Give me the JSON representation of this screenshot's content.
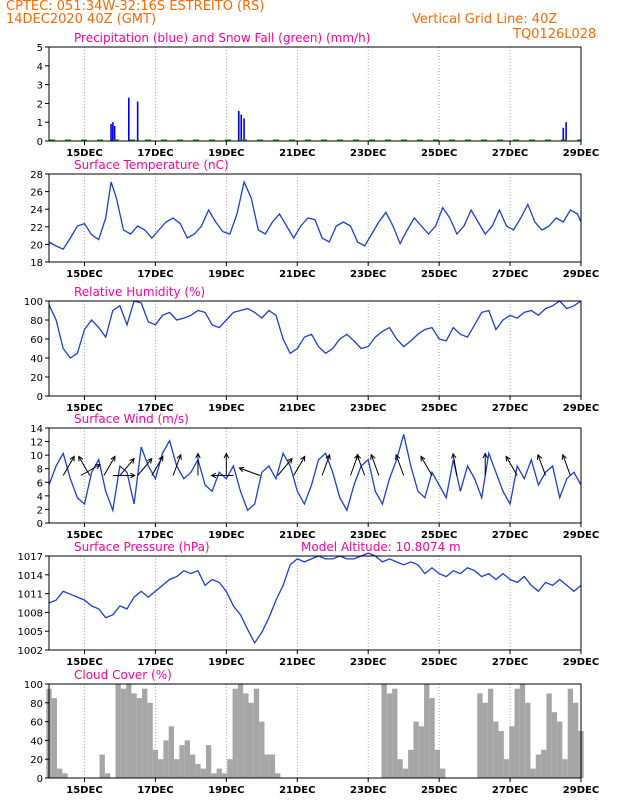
{
  "header": {
    "line1": "CPTEC:   051:34W-32:16S   ESTREITO (RS)",
    "line2": "14DEC2020 40Z (GMT)",
    "grid_note": "Vertical Grid Line: 40Z",
    "code": "TQ0126L028"
  },
  "colors": {
    "header": "#ff6600",
    "title": "#ff0099",
    "line": "#1a3fd8",
    "precip": "#0000ee",
    "snow": "#00aa00",
    "cloud": "#a6a6a6"
  },
  "x_ticks": [
    "15DEC",
    "17DEC",
    "19DEC",
    "21DEC",
    "23DEC",
    "25DEC",
    "27DEC",
    "29DEC"
  ],
  "chart_data": [
    {
      "id": "precip",
      "type": "bar",
      "title": "Precipitation (blue) and Snow Fall (green) (mm/h)",
      "ylim": [
        0,
        5
      ],
      "yticks": [
        "0",
        "1",
        "2",
        "3",
        "4",
        "5"
      ],
      "x_range": [
        14.1,
        29.1
      ],
      "bars": [
        {
          "x": 15.85,
          "v": 0.9
        },
        {
          "x": 15.9,
          "v": 1.0
        },
        {
          "x": 15.95,
          "v": 0.8
        },
        {
          "x": 16.35,
          "v": 2.3
        },
        {
          "x": 16.6,
          "v": 2.1
        },
        {
          "x": 19.45,
          "v": 1.6
        },
        {
          "x": 19.52,
          "v": 1.4
        },
        {
          "x": 19.6,
          "v": 1.2
        },
        {
          "x": 28.6,
          "v": 0.7
        },
        {
          "x": 28.68,
          "v": 1.0
        }
      ]
    },
    {
      "id": "temp",
      "type": "line",
      "title": "Surface Temperature (nC)",
      "ylim": [
        17,
        28
      ],
      "yticks": [
        "18",
        "20",
        "22",
        "24",
        "26",
        "28"
      ],
      "x_range": [
        14.1,
        29.1
      ],
      "x": [
        14.1,
        14.3,
        14.5,
        14.7,
        14.9,
        15.1,
        15.3,
        15.5,
        15.7,
        15.85,
        16.0,
        16.2,
        16.4,
        16.6,
        16.8,
        17.0,
        17.2,
        17.4,
        17.6,
        17.8,
        18.0,
        18.2,
        18.4,
        18.6,
        18.8,
        19.0,
        19.2,
        19.4,
        19.6,
        19.8,
        20.0,
        20.2,
        20.4,
        20.6,
        20.8,
        21.0,
        21.2,
        21.4,
        21.6,
        21.8,
        22.0,
        22.2,
        22.4,
        22.6,
        22.8,
        23.0,
        23.2,
        23.4,
        23.6,
        23.8,
        24.0,
        24.2,
        24.4,
        24.6,
        24.8,
        25.0,
        25.2,
        25.4,
        25.6,
        25.8,
        26.0,
        26.2,
        26.4,
        26.6,
        26.8,
        27.0,
        27.2,
        27.4,
        27.6,
        27.8,
        28.0,
        28.2,
        28.4,
        28.6,
        28.8,
        29.0,
        29.1
      ],
      "y": [
        19.5,
        19.0,
        18.6,
        20.0,
        21.5,
        21.8,
        20.4,
        19.8,
        22.5,
        27.0,
        25.0,
        21.0,
        20.5,
        21.5,
        21.0,
        20.0,
        21.0,
        22.0,
        22.5,
        21.8,
        20.0,
        20.5,
        21.5,
        23.5,
        22.0,
        20.8,
        20.5,
        23.0,
        27.0,
        25.0,
        21.0,
        20.5,
        22.0,
        23.0,
        21.5,
        20.0,
        21.5,
        22.5,
        22.3,
        20.0,
        19.5,
        21.5,
        22.0,
        21.5,
        19.5,
        19.0,
        20.5,
        22.0,
        23.2,
        21.5,
        19.3,
        21.0,
        22.5,
        21.5,
        20.5,
        21.5,
        23.8,
        22.5,
        20.5,
        21.5,
        23.5,
        22.0,
        20.5,
        21.5,
        23.5,
        21.5,
        21.0,
        22.5,
        24.2,
        22.0,
        21.0,
        21.5,
        22.5,
        22.0,
        23.5,
        23.0,
        22.0
      ]
    },
    {
      "id": "rh",
      "type": "line",
      "title": "Relative Humidity (%)",
      "ylim": [
        0,
        100
      ],
      "yticks": [
        "0",
        "20",
        "40",
        "60",
        "80",
        "100"
      ],
      "x_range": [
        14.1,
        29.1
      ],
      "x": [
        14.1,
        14.3,
        14.5,
        14.7,
        14.9,
        15.1,
        15.3,
        15.5,
        15.7,
        15.9,
        16.1,
        16.3,
        16.5,
        16.7,
        16.9,
        17.1,
        17.3,
        17.5,
        17.7,
        17.9,
        18.1,
        18.3,
        18.5,
        18.7,
        18.9,
        19.1,
        19.3,
        19.5,
        19.7,
        19.9,
        20.1,
        20.3,
        20.5,
        20.7,
        20.9,
        21.1,
        21.3,
        21.5,
        21.7,
        21.9,
        22.1,
        22.3,
        22.5,
        22.7,
        22.9,
        23.1,
        23.3,
        23.5,
        23.7,
        23.9,
        24.1,
        24.3,
        24.5,
        24.7,
        24.9,
        25.1,
        25.3,
        25.5,
        25.7,
        25.9,
        26.1,
        26.3,
        26.5,
        26.7,
        26.9,
        27.1,
        27.3,
        27.5,
        27.7,
        27.9,
        28.1,
        28.3,
        28.5,
        28.7,
        28.9,
        29.1
      ],
      "y": [
        96,
        80,
        50,
        40,
        45,
        70,
        80,
        72,
        62,
        90,
        95,
        75,
        100,
        98,
        78,
        75,
        85,
        88,
        80,
        82,
        85,
        90,
        88,
        75,
        72,
        80,
        88,
        90,
        92,
        88,
        82,
        90,
        85,
        60,
        45,
        50,
        62,
        65,
        52,
        45,
        50,
        60,
        65,
        58,
        50,
        52,
        62,
        68,
        72,
        60,
        52,
        58,
        65,
        70,
        72,
        60,
        58,
        72,
        65,
        62,
        75,
        88,
        90,
        70,
        80,
        85,
        82,
        88,
        90,
        85,
        92,
        95,
        100,
        92,
        95,
        100
      ]
    },
    {
      "id": "wind",
      "type": "line",
      "title": "Surface Wind (m/s)",
      "ylim": [
        0,
        15
      ],
      "yticks": [
        "0",
        "2",
        "4",
        "6",
        "8",
        "10",
        "12",
        "14"
      ],
      "x_range": [
        14.1,
        29.1
      ],
      "x": [
        14.1,
        14.3,
        14.5,
        14.7,
        14.9,
        15.1,
        15.3,
        15.5,
        15.7,
        15.9,
        16.1,
        16.3,
        16.5,
        16.7,
        16.9,
        17.1,
        17.3,
        17.5,
        17.7,
        17.9,
        18.1,
        18.3,
        18.5,
        18.7,
        18.9,
        19.1,
        19.3,
        19.5,
        19.7,
        19.9,
        20.1,
        20.3,
        20.5,
        20.7,
        20.9,
        21.1,
        21.3,
        21.5,
        21.7,
        21.9,
        22.1,
        22.3,
        22.5,
        22.7,
        22.9,
        23.1,
        23.3,
        23.5,
        23.7,
        23.9,
        24.1,
        24.3,
        24.5,
        24.7,
        24.9,
        25.1,
        25.3,
        25.5,
        25.7,
        25.9,
        26.1,
        26.3,
        26.5,
        26.7,
        26.9,
        27.1,
        27.3,
        27.5,
        27.7,
        27.9,
        28.1,
        28.3,
        28.5,
        28.7,
        28.9,
        29.1
      ],
      "y": [
        6,
        9,
        11,
        7,
        4,
        3,
        8,
        10,
        5,
        2,
        9,
        8,
        3,
        12,
        9,
        7,
        11,
        13,
        9,
        7,
        8,
        10,
        6,
        5,
        8,
        7,
        9,
        5,
        2,
        3,
        8,
        9,
        7,
        11,
        9,
        5,
        3,
        6,
        10,
        11,
        8,
        4,
        2,
        6,
        9,
        10,
        5,
        3,
        7,
        10,
        14,
        9,
        5,
        4,
        8,
        6,
        4,
        10,
        5,
        9,
        7,
        4,
        11,
        8,
        5,
        3,
        9,
        7,
        10,
        6,
        8,
        9,
        4,
        7,
        8,
        6
      ],
      "arrows": [
        {
          "x": 14.5,
          "dir": 300
        },
        {
          "x": 15.0,
          "dir": 330
        },
        {
          "x": 15.25,
          "dir": 240
        },
        {
          "x": 15.65,
          "dir": 300
        },
        {
          "x": 15.9,
          "dir": 0
        },
        {
          "x": 16.1,
          "dir": 310
        },
        {
          "x": 16.6,
          "dir": 310
        },
        {
          "x": 17.0,
          "dir": 300
        },
        {
          "x": 17.6,
          "dir": 290
        },
        {
          "x": 18.3,
          "dir": 270
        },
        {
          "x": 19.1,
          "dir": 270
        },
        {
          "x": 19.3,
          "dir": 180
        },
        {
          "x": 20.05,
          "dir": 200
        },
        {
          "x": 20.55,
          "dir": 310
        },
        {
          "x": 21.0,
          "dir": 300
        },
        {
          "x": 21.8,
          "dir": 290
        },
        {
          "x": 22.6,
          "dir": 290
        },
        {
          "x": 23.0,
          "dir": 250
        },
        {
          "x": 23.4,
          "dir": 250
        },
        {
          "x": 24.1,
          "dir": 250
        },
        {
          "x": 24.9,
          "dir": 240
        },
        {
          "x": 25.6,
          "dir": 260
        },
        {
          "x": 26.4,
          "dir": 270
        },
        {
          "x": 27.3,
          "dir": 240
        },
        {
          "x": 28.1,
          "dir": 250
        },
        {
          "x": 28.8,
          "dir": 250
        }
      ]
    },
    {
      "id": "press",
      "type": "line",
      "title": "Surface Pressure (hPa)",
      "subtitle": "Model Altitude: 10.8074 m",
      "ylim": [
        1001,
        1017
      ],
      "yticks": [
        "1002",
        "1005",
        "1008",
        "1011",
        "1014",
        "1017"
      ],
      "x_range": [
        14.1,
        29.1
      ],
      "x": [
        14.1,
        14.3,
        14.5,
        14.7,
        14.9,
        15.1,
        15.3,
        15.5,
        15.7,
        15.9,
        16.1,
        16.3,
        16.5,
        16.7,
        16.9,
        17.1,
        17.3,
        17.5,
        17.7,
        17.9,
        18.1,
        18.3,
        18.5,
        18.7,
        18.9,
        19.1,
        19.3,
        19.5,
        19.7,
        19.9,
        20.1,
        20.3,
        20.5,
        20.7,
        20.9,
        21.1,
        21.3,
        21.5,
        21.7,
        21.9,
        22.1,
        22.3,
        22.5,
        22.7,
        22.9,
        23.1,
        23.3,
        23.5,
        23.7,
        23.9,
        24.1,
        24.3,
        24.5,
        24.7,
        24.9,
        25.1,
        25.3,
        25.5,
        25.7,
        25.9,
        26.1,
        26.3,
        26.5,
        26.7,
        26.9,
        27.1,
        27.3,
        27.5,
        27.7,
        27.9,
        28.1,
        28.3,
        28.5,
        28.7,
        28.9,
        29.1
      ],
      "y": [
        1009,
        1009.5,
        1011,
        1010.5,
        1010,
        1009.5,
        1008.5,
        1008,
        1006.5,
        1007,
        1008.5,
        1008,
        1010,
        1011,
        1010,
        1011,
        1012,
        1013,
        1013.5,
        1014.5,
        1014,
        1014.5,
        1012,
        1013,
        1012.5,
        1011,
        1008.5,
        1007,
        1004.5,
        1002.2,
        1004,
        1006.5,
        1009.5,
        1012,
        1015.5,
        1016.5,
        1016,
        1016.5,
        1017,
        1016.5,
        1016.5,
        1017,
        1016.5,
        1016.5,
        1017,
        1017.5,
        1017,
        1016,
        1016.5,
        1016,
        1015.5,
        1016,
        1015.5,
        1014,
        1015,
        1014,
        1013.5,
        1014.5,
        1014,
        1015,
        1014.5,
        1013.5,
        1014,
        1013,
        1014,
        1013,
        1012.5,
        1013.5,
        1012,
        1011,
        1012.5,
        1012,
        1013,
        1012,
        1011,
        1012
      ]
    },
    {
      "id": "cloud",
      "type": "bar",
      "title": "Cloud Cover (%)",
      "ylim": [
        0,
        100
      ],
      "yticks": [
        "0",
        "20",
        "40",
        "60",
        "80",
        "100"
      ],
      "x_range": [
        14.1,
        29.1
      ],
      "x": [
        14.1,
        14.25,
        14.4,
        14.55,
        14.7,
        14.85,
        15.0,
        15.15,
        15.3,
        15.45,
        15.6,
        15.75,
        15.9,
        16.05,
        16.2,
        16.35,
        16.5,
        16.65,
        16.8,
        16.95,
        17.1,
        17.25,
        17.4,
        17.55,
        17.7,
        17.85,
        18.0,
        18.15,
        18.3,
        18.45,
        18.6,
        18.75,
        18.9,
        19.05,
        19.2,
        19.35,
        19.5,
        19.65,
        19.8,
        19.95,
        20.1,
        20.25,
        20.4,
        20.55,
        20.7,
        20.85,
        21.0,
        21.15,
        21.3,
        21.45,
        21.6,
        21.75,
        21.9,
        22.05,
        22.2,
        22.35,
        22.5,
        22.65,
        22.8,
        22.95,
        23.1,
        23.25,
        23.4,
        23.55,
        23.7,
        23.85,
        24.0,
        24.15,
        24.3,
        24.45,
        24.6,
        24.75,
        24.9,
        25.05,
        25.2,
        25.35,
        25.5,
        25.65,
        25.8,
        25.95,
        26.1,
        26.25,
        26.4,
        26.55,
        26.7,
        26.85,
        27.0,
        27.15,
        27.3,
        27.45,
        27.6,
        27.75,
        27.9,
        28.05,
        28.2,
        28.35,
        28.5,
        28.65,
        28.8,
        28.95,
        29.1
      ],
      "v": [
        95,
        85,
        10,
        5,
        0,
        0,
        0,
        0,
        0,
        0,
        25,
        5,
        0,
        100,
        95,
        100,
        90,
        85,
        95,
        80,
        30,
        20,
        40,
        55,
        20,
        35,
        40,
        25,
        15,
        10,
        35,
        5,
        10,
        5,
        20,
        95,
        100,
        90,
        80,
        95,
        60,
        25,
        25,
        5,
        0,
        0,
        0,
        0,
        0,
        0,
        0,
        0,
        0,
        0,
        0,
        0,
        0,
        0,
        0,
        0,
        0,
        0,
        0,
        100,
        90,
        95,
        20,
        10,
        30,
        60,
        55,
        100,
        85,
        30,
        10,
        0,
        0,
        0,
        0,
        0,
        0,
        90,
        80,
        95,
        60,
        50,
        20,
        55,
        95,
        100,
        80,
        10,
        25,
        30,
        90,
        70,
        60,
        20,
        95,
        80,
        50
      ]
    }
  ]
}
